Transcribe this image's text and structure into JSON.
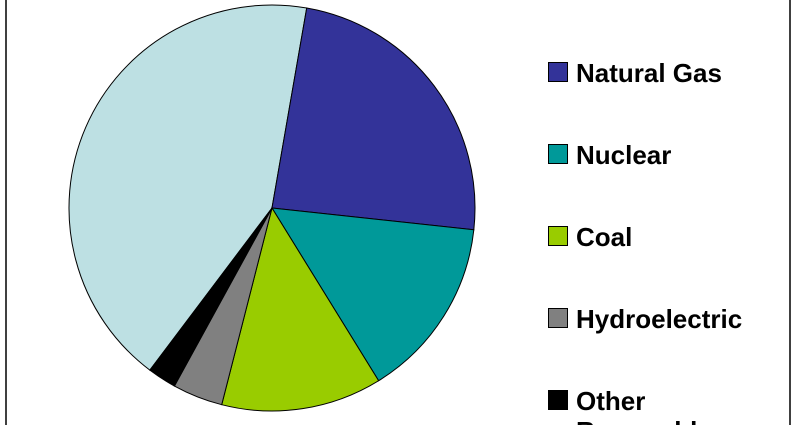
{
  "chart_data": {
    "type": "pie",
    "categories": [
      null,
      "Natural Gas",
      "Nuclear",
      "Coal",
      "Hydroelectric",
      "Other Renewables"
    ],
    "values": [
      42.5,
      24,
      14.5,
      12.8,
      4,
      2.3
    ],
    "colors": [
      "#bde0e3",
      "#333399",
      "#009999",
      "#99cc00",
      "#808080",
      "#000000"
    ]
  }
}
